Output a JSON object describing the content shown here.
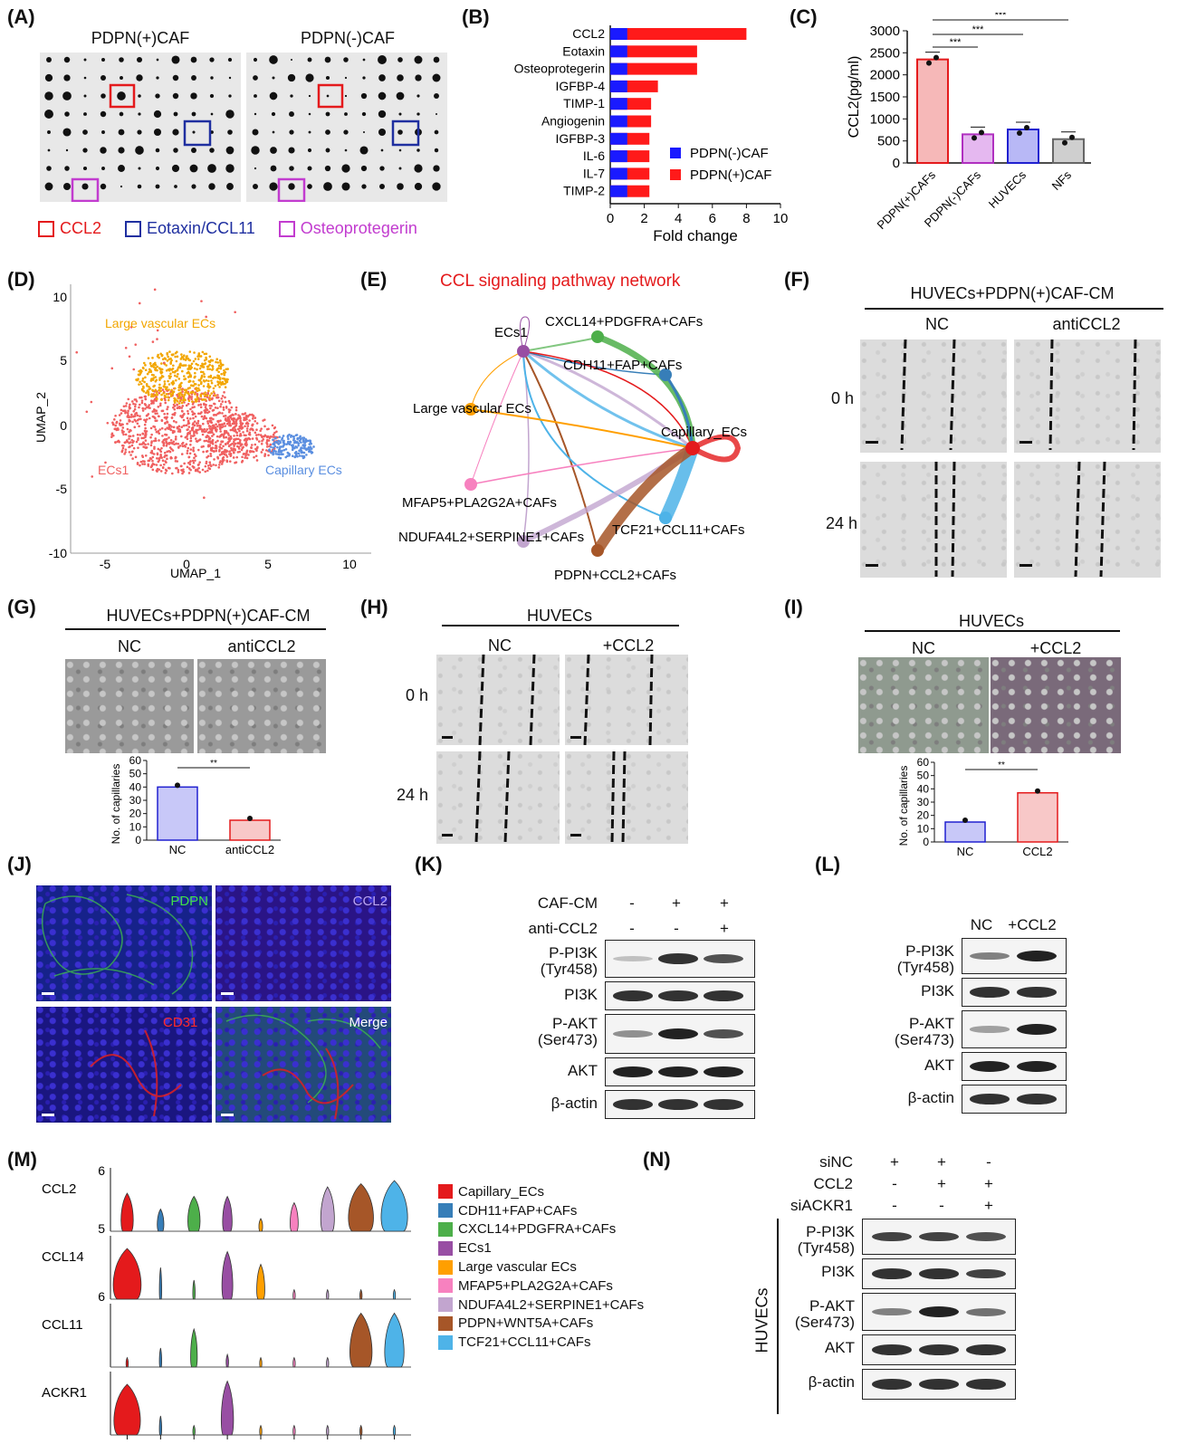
{
  "panels": {
    "A": {
      "label": "(A)",
      "left_title": "PDPN(+)CAF",
      "right_title": "PDPN(-)CAF",
      "legend": [
        {
          "text": "CCL2",
          "color": "#e41a1c"
        },
        {
          "text": "Eotaxin/CCL11",
          "color": "#1f2fa0"
        },
        {
          "text": "Osteoprotegerin",
          "color": "#c23ccf"
        }
      ]
    },
    "B": {
      "label": "(B)",
      "xlabel": "Fold change",
      "legend": [
        {
          "text": "PDPN(-)CAF",
          "color": "#1a1aff"
        },
        {
          "text": "PDPN(+)CAF",
          "color": "#ff1a1a"
        }
      ]
    },
    "C": {
      "label": "(C)",
      "ylabel": "CCL2(pg/ml)",
      "sig": "***"
    },
    "D": {
      "label": "(D)",
      "xlabel": "UMAP_1",
      "ylabel": "UMAP_2",
      "clusters": [
        {
          "text": "Large vascular ECs",
          "color": "#f2a600"
        },
        {
          "text": "ECs1",
          "color": "#f06060"
        },
        {
          "text": "Capillary ECs",
          "color": "#5b8fe0"
        }
      ],
      "xticks": [
        "-5",
        "0",
        "5",
        "10"
      ],
      "yticks": [
        "10",
        "5",
        "0",
        "-5",
        "-10"
      ]
    },
    "E": {
      "label": "(E)",
      "title": "CCL signaling pathway network",
      "nodes": [
        "ECs1",
        "CXCL14+PDGFRA+CAFs",
        "CDH11+FAP+CAFs",
        "Large vascular ECs",
        "Capillary_ECs",
        "MFAP5+PLA2G2A+CAFs",
        "NDUFA4L2+SERPINE1+CAFs",
        "TCF21+CCL11+CAFs",
        "PDPN+CCL2+CAFs"
      ]
    },
    "F": {
      "label": "(F)",
      "header": "HUVECs+PDPN(+)CAF-CM",
      "col1": "NC",
      "col2": "antiCCL2",
      "row1": "0 h",
      "row2": "24 h"
    },
    "G": {
      "label": "(G)",
      "header": "HUVECs+PDPN(+)CAF-CM",
      "col1": "NC",
      "col2": "antiCCL2",
      "ylabel": "No. of capillaries",
      "sig": "**",
      "yticks": [
        "60",
        "50",
        "40",
        "30",
        "20",
        "10",
        "0"
      ],
      "xcats": [
        "NC",
        "antiCCL2"
      ]
    },
    "H": {
      "label": "(H)",
      "header": "HUVECs",
      "col1": "NC",
      "col2": "+CCL2",
      "row1": "0 h",
      "row2": "24 h"
    },
    "I": {
      "label": "(I)",
      "header": "HUVECs",
      "col1": "NC",
      "col2": "+CCL2",
      "ylabel": "No. of capillaries",
      "sig": "**",
      "yticks": [
        "60",
        "50",
        "40",
        "30",
        "20",
        "10",
        "0"
      ],
      "xcats": [
        "NC",
        "CCL2"
      ]
    },
    "J": {
      "label": "(J)",
      "tl": "PDPN",
      "tr": "CCL2",
      "bl": "CD31",
      "br": "Merge"
    },
    "K": {
      "label": "(K)",
      "row1_label": "CAF-CM",
      "row1": [
        "-",
        "+",
        "+"
      ],
      "row2_label": "anti-CCL2",
      "row2": [
        "-",
        "-",
        "+"
      ],
      "bands": [
        "P-PI3K\n(Tyr458)",
        "PI3K",
        "P-AKT\n(Ser473)",
        "AKT",
        "β-actin"
      ]
    },
    "L": {
      "label": "(L)",
      "cols": [
        "NC",
        "+CCL2"
      ],
      "bands": [
        "P-PI3K\n(Tyr458)",
        "PI3K",
        "P-AKT\n(Ser473)",
        "AKT",
        "β-actin"
      ]
    },
    "M": {
      "label": "(M)",
      "genes": [
        "CCL2",
        "CCL14",
        "CCL11",
        "ACKR1"
      ],
      "ytop": "6",
      "ybottom": "5",
      "legend": [
        {
          "text": "Capillary_ECs",
          "color": "#e41a1c"
        },
        {
          "text": "CDH11+FAP+CAFs",
          "color": "#377eb8"
        },
        {
          "text": "CXCL14+PDGFRA+CAFs",
          "color": "#4daf4a"
        },
        {
          "text": "ECs1",
          "color": "#984ea3"
        },
        {
          "text": "Large vascular ECs",
          "color": "#ff9f00"
        },
        {
          "text": "MFAP5+PLA2G2A+CAFs",
          "color": "#f781bf"
        },
        {
          "text": "NDUFA4L2+SERPINE1+CAFs",
          "color": "#c2a5cf"
        },
        {
          "text": "PDPN+WNT5A+CAFs",
          "color": "#a65628"
        },
        {
          "text": "TCF21+CCL11+CAFs",
          "color": "#4eb3e8"
        }
      ]
    },
    "N": {
      "label": "(N)",
      "row1_label": "siNC",
      "row1": [
        "+",
        "+",
        "-"
      ],
      "row2_label": "CCL2",
      "row2": [
        "-",
        "+",
        "+"
      ],
      "row3_label": "siACKR1",
      "row3": [
        "-",
        "-",
        "+"
      ],
      "side": "HUVECs",
      "bands": [
        "P-PI3K\n(Tyr458)",
        "PI3K",
        "P-AKT\n(Ser473)",
        "AKT",
        "β-actin"
      ]
    }
  },
  "chart_data": [
    {
      "type": "bar",
      "panel": "B",
      "orientation": "horizontal",
      "categories": [
        "CCL2",
        "Eotaxin",
        "Osteoprotegerin",
        "IGFBP-4",
        "TIMP-1",
        "Angiogenin",
        "IGFBP-3",
        "IL-6",
        "IL-7",
        "TIMP-2"
      ],
      "series": [
        {
          "name": "PDPN(-)CAF",
          "values": [
            1,
            1,
            1,
            1,
            1,
            1,
            1,
            1,
            1,
            1
          ]
        },
        {
          "name": "PDPN(+)CAF",
          "values": [
            8.0,
            5.1,
            5.1,
            2.8,
            2.4,
            2.4,
            2.3,
            2.3,
            2.3,
            2.3
          ]
        }
      ],
      "xlabel": "Fold change",
      "xlim": [
        0,
        10
      ],
      "xticks": [
        0,
        2,
        4,
        6,
        8,
        10
      ]
    },
    {
      "type": "bar",
      "panel": "C",
      "categories": [
        "PDPN(+)CAFs",
        "PDPN(-)CAFs",
        "HUVECs",
        "NFs"
      ],
      "values": [
        2350,
        650,
        760,
        540
      ],
      "ylabel": "CCL2(pg/ml)",
      "ylim": [
        0,
        3000
      ],
      "yticks": [
        0,
        500,
        1000,
        1500,
        2000,
        2500,
        3000
      ],
      "colors": [
        "#f6b8b8",
        "#e5b8f0",
        "#b8b8f6",
        "#cfcfcf"
      ],
      "edge": [
        "#e41a1c",
        "#b030c0",
        "#2020d0",
        "#666666"
      ]
    },
    {
      "type": "bar",
      "panel": "G",
      "categories": [
        "NC",
        "antiCCL2"
      ],
      "values": [
        40,
        15
      ],
      "ylim": [
        0,
        60
      ]
    },
    {
      "type": "bar",
      "panel": "I",
      "categories": [
        "NC",
        "CCL2"
      ],
      "values": [
        15,
        37
      ],
      "ylim": [
        0,
        60
      ]
    }
  ]
}
